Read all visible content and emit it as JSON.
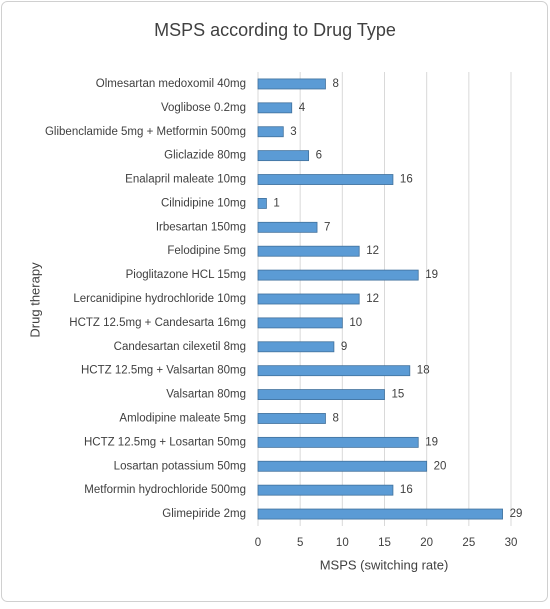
{
  "chart_data": {
    "type": "bar",
    "orientation": "horizontal",
    "title": "MSPS according to Drug Type",
    "x_label": "MSPS (switching rate)",
    "y_label": "Drug therapy",
    "categories": [
      "Olmesartan medoxomil 40mg",
      "Voglibose 0.2mg",
      "Glibenclamide 5mg + Metformin 500mg",
      "Gliclazide 80mg",
      "Enalapril maleate 10mg",
      "Cilnidipine 10mg",
      "Irbesartan 150mg",
      "Felodipine 5mg",
      "Pioglitazone HCL 15mg",
      "Lercanidipine hydrochloride 10mg",
      "HCTZ 12.5mg + Candesarta 16mg",
      "Candesartan cilexetil 8mg",
      "HCTZ 12.5mg + Valsartan 80mg",
      "Valsartan 80mg",
      "Amlodipine maleate 5mg",
      "HCTZ 12.5mg + Losartan 50mg",
      "Losartan potassium 50mg",
      "Metformin hydrochloride 500mg",
      "Glimepiride 2mg"
    ],
    "values": [
      8,
      4,
      3,
      6,
      16,
      1,
      7,
      12,
      19,
      12,
      10,
      9,
      18,
      15,
      8,
      19,
      20,
      16,
      29
    ],
    "color": "#5b9bd5",
    "xlim": [
      0,
      30
    ],
    "xticks": [
      0,
      5,
      10,
      15,
      20,
      25,
      30
    ],
    "grid": true,
    "data_labels": true
  }
}
